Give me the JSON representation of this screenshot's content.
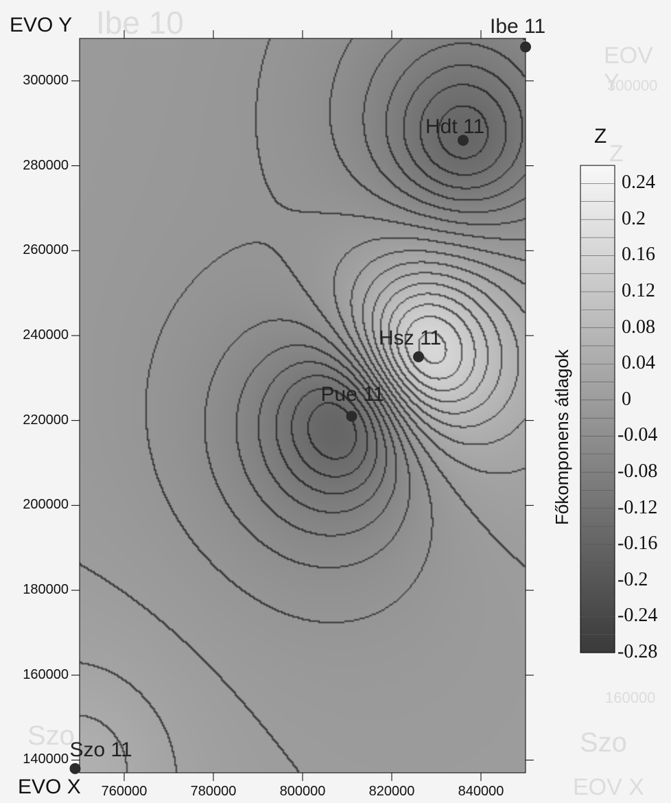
{
  "chart_data": {
    "type": "heatmap",
    "title": "",
    "xlabel": "EVO X",
    "ylabel": "EVO Y",
    "xlim": [
      750000,
      850000
    ],
    "ylim": [
      137000,
      310000
    ],
    "x_ticks": [
      760000,
      780000,
      800000,
      820000,
      840000
    ],
    "x_tick_labels": [
      "760000",
      "780000",
      "800000",
      "820000",
      "840000"
    ],
    "y_ticks": [
      140000,
      160000,
      180000,
      200000,
      220000,
      240000,
      260000,
      280000,
      300000
    ],
    "y_tick_labels": [
      "140000",
      "160000",
      "180000",
      "200000",
      "220000",
      "240000",
      "260000",
      "280000",
      "300000"
    ],
    "colorbar": {
      "title": "Z",
      "label": "Főkomponens átlagok",
      "min": -0.28,
      "max": 0.26,
      "step": 0.02,
      "tick_labels": [
        "0.24",
        "0.2",
        "0.16",
        "0.12",
        "0.08",
        "0.04",
        "0",
        "-0.04",
        "-0.08",
        "-0.12",
        "-0.16",
        "-0.2",
        "-0.24",
        "-0.28"
      ],
      "color_low": "#3a3a3a",
      "color_high": "#f8f8f8"
    },
    "stations": [
      {
        "name": "Ibe 11",
        "x": 850000,
        "y": 308000
      },
      {
        "name": "Hdt 11",
        "x": 836000,
        "y": 286000
      },
      {
        "name": "Hsz 11",
        "x": 826000,
        "y": 235000
      },
      {
        "name": "Pue 11",
        "x": 811000,
        "y": 221000
      },
      {
        "name": "Szo 11",
        "x": 749000,
        "y": 138000
      }
    ],
    "field_sources": [
      {
        "x": 836000,
        "y": 286000,
        "amp": -0.18
      },
      {
        "x": 826000,
        "y": 235000,
        "amp": 0.34
      },
      {
        "x": 811000,
        "y": 221000,
        "amp": -0.3
      },
      {
        "x": 750000,
        "y": 138000,
        "amp": 0.06
      }
    ]
  },
  "ghost": {
    "title": "Ibe 10",
    "ylabel": "EOV Y",
    "xlabel": "EOV X",
    "z": "Z",
    "y_tick": "300000",
    "y_tick2": "160000",
    "bottom_left": "Szo",
    "bottom_right": "Szo"
  }
}
